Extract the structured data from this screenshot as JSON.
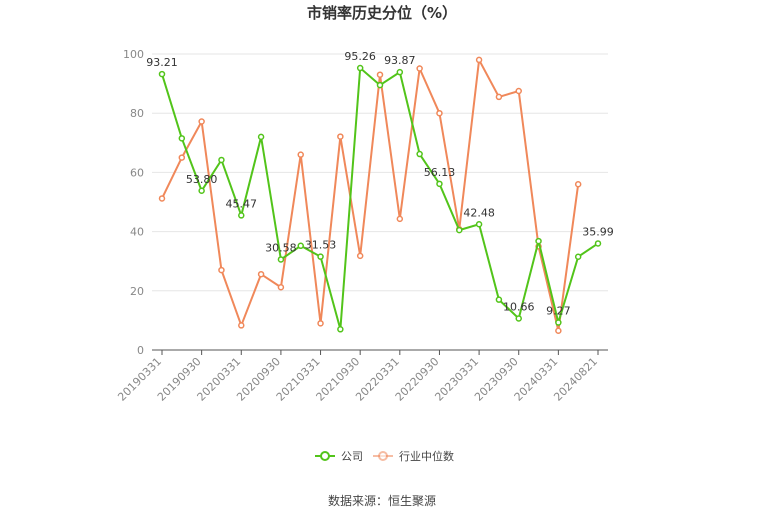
{
  "chart_data": {
    "type": "line",
    "title": "市销率历史分位（%）",
    "ylim": [
      0,
      100
    ],
    "yticks": [
      0,
      20,
      40,
      60,
      80,
      100
    ],
    "grid": true,
    "legend_position": "bottom",
    "x": [
      "20190331",
      "20190630",
      "20190930",
      "20191231",
      "20200331",
      "20200630",
      "20200930",
      "20201231",
      "20210331",
      "20210630",
      "20210930",
      "20211231",
      "20220331",
      "20220630",
      "20220930",
      "20221231",
      "20230331",
      "20230630",
      "20230930",
      "20231231",
      "20240331",
      "20240630",
      "20240821"
    ],
    "x_tick_labels": [
      "20190331",
      "20190930",
      "20200331",
      "20200930",
      "20210331",
      "20210930",
      "20220331",
      "20220930",
      "20230331",
      "20230930",
      "20240331",
      "20240821"
    ],
    "series": [
      {
        "name": "公司",
        "color": "#52c41a",
        "values": [
          93.21,
          71.5,
          53.8,
          64.2,
          45.47,
          72.0,
          30.58,
          35.2,
          31.53,
          7.0,
          95.26,
          89.5,
          93.87,
          66.2,
          56.13,
          40.5,
          42.48,
          17.0,
          10.66,
          36.8,
          9.27,
          31.5,
          35.99
        ],
        "labels": {
          "0": "93.21",
          "2": "53.80",
          "4": "45.47",
          "6": "30.58",
          "8": "31.53",
          "10": "95.26",
          "12": "93.87",
          "14": "56.13",
          "16": "42.48",
          "18": "10.66",
          "20": "9.27",
          "22": "35.99"
        }
      },
      {
        "name": "行业中位数",
        "color": "#f0885a",
        "values": [
          51.2,
          65.0,
          77.2,
          27.0,
          8.3,
          25.6,
          21.2,
          66.0,
          9.0,
          72.1,
          31.8,
          93.0,
          44.3,
          95.1,
          80.0,
          40.8,
          98.0,
          85.5,
          87.5,
          35.0,
          6.5,
          56.0,
          null
        ]
      }
    ],
    "source": "数据来源：恒生聚源"
  }
}
